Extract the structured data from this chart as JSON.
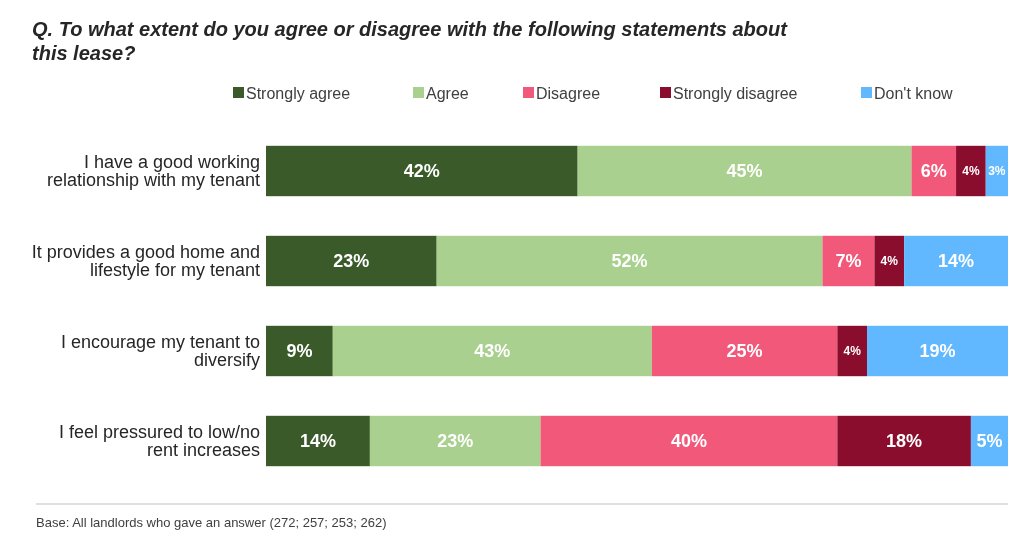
{
  "chart_data": {
    "type": "bar",
    "orientation": "horizontal",
    "stacked": true,
    "title": "Q. To what extent do you agree or disagree with the following statements about this lease?",
    "categories": [
      "I have a good working relationship with my tenant",
      "It provides a good home and lifestyle for my tenant",
      "I encourage my tenant to diversify",
      "I feel pressured to low/no rent increases"
    ],
    "series": [
      {
        "name": "Strongly agree",
        "color": "#3a5a2a",
        "values": [
          42,
          23,
          9,
          14
        ],
        "value_labels": [
          "42%",
          "23%",
          "9%",
          "14%"
        ]
      },
      {
        "name": "Agree",
        "color": "#a9d08e",
        "values": [
          45,
          52,
          43,
          23
        ],
        "value_labels": [
          "45%",
          "52%",
          "43%",
          "23%"
        ]
      },
      {
        "name": "Disagree",
        "color": "#f2587a",
        "values": [
          6,
          7,
          25,
          40
        ],
        "value_labels": [
          "6%",
          "7%",
          "25%",
          "40%"
        ]
      },
      {
        "name": "Strongly disagree",
        "color": "#8b0d2e",
        "values": [
          4,
          4,
          4,
          18
        ],
        "value_labels": [
          "4%",
          "4%",
          "4%",
          "18%"
        ]
      },
      {
        "name": "Don't know",
        "color": "#61b8ff",
        "values": [
          3,
          14,
          19,
          5
        ],
        "value_labels": [
          "3%",
          "14%",
          "19%",
          "5%"
        ]
      }
    ],
    "legend": "top",
    "annotations": [
      "Base: All landlords who gave an answer (272; 257; 253; 262)"
    ]
  }
}
